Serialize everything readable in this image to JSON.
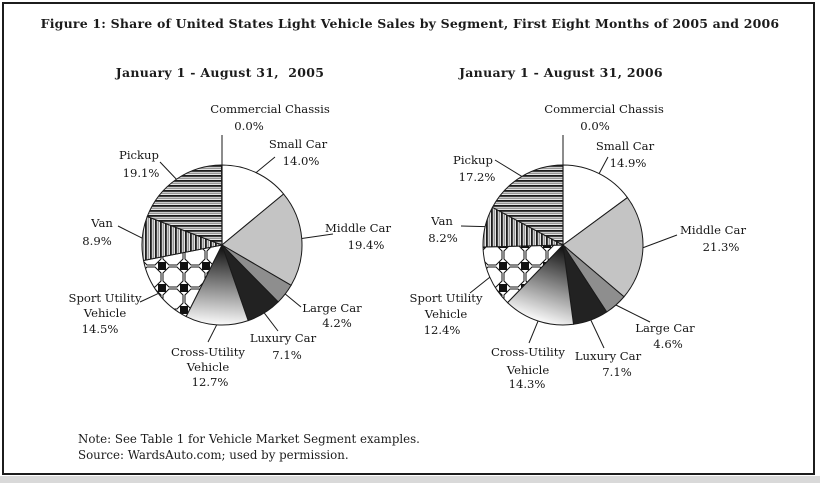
{
  "figure": {
    "title": "Figure 1: Share of United States Light Vehicle Sales by Segment, First Eight Months of 2005 and 2006"
  },
  "chart_data": [
    {
      "type": "pie",
      "title": "January 1 - August 31,  2005",
      "start_angle": "12 o'clock",
      "direction": "clockwise",
      "categories": [
        "Commercial Chassis",
        "Small Car",
        "Middle Car",
        "Large Car",
        "Luxury Car",
        "Cross-Utility Vehicle",
        "Sport Utility Vehicle",
        "Van",
        "Pickup"
      ],
      "values": [
        0.0,
        14.0,
        19.4,
        4.2,
        7.1,
        12.7,
        14.5,
        8.9,
        19.1
      ],
      "value_labels": [
        "0.0%",
        "14.0%",
        "19.4%",
        "4.2%",
        "7.1%",
        "12.7%",
        "14.5%",
        "8.9%",
        "19.1%"
      ],
      "label_lines": [
        [
          "Commercial Chassis"
        ],
        [
          "Small Car"
        ],
        [
          "Middle Car"
        ],
        [
          "Large Car"
        ],
        [
          "Luxury Car"
        ],
        [
          "Cross-Utility",
          "Vehicle"
        ],
        [
          "Sport Utility",
          "Vehicle"
        ],
        [
          "Van"
        ],
        [
          "Pickup"
        ]
      ],
      "patterns": [
        "none",
        "solid-white",
        "solid-light-gray",
        "solid-medium-gray",
        "solid-black",
        "gradient",
        "checker",
        "vertical-stripes",
        "horizontal-stripes"
      ]
    },
    {
      "type": "pie",
      "title": "January 1 - August 31, 2006",
      "start_angle": "12 o'clock",
      "direction": "clockwise",
      "categories": [
        "Commercial Chassis",
        "Small Car",
        "Middle Car",
        "Large Car",
        "Luxury Car",
        "Cross-Utility Vehicle",
        "Sport Utility Vehicle",
        "Van",
        "Pickup"
      ],
      "values": [
        0.0,
        14.9,
        21.3,
        4.6,
        7.1,
        14.3,
        12.4,
        8.2,
        17.2
      ],
      "value_labels": [
        "0.0%",
        "14.9%",
        "21.3%",
        "4.6%",
        "7.1%",
        "14.3%",
        "12.4%",
        "8.2%",
        "17.2%"
      ],
      "label_lines": [
        [
          "Commercial Chassis"
        ],
        [
          "Small Car"
        ],
        [
          "Middle Car"
        ],
        [
          "Large Car"
        ],
        [
          "Luxury Car"
        ],
        [
          "Cross-Utility",
          "Vehicle"
        ],
        [
          "Sport Utility",
          "Vehicle"
        ],
        [
          "Van"
        ],
        [
          "Pickup"
        ]
      ],
      "patterns": [
        "none",
        "solid-white",
        "solid-light-gray",
        "solid-medium-gray",
        "solid-black",
        "gradient",
        "checker",
        "vertical-stripes",
        "horizontal-stripes"
      ]
    }
  ],
  "colors": {
    "light_gray": "#c4c4c4",
    "medium_gray": "#8e8e8e",
    "near_black": "#222222",
    "stroke": "#1a1a1a",
    "page_edge_strip": "#d9d9d9"
  },
  "note": {
    "line1": "Note: See Table 1 for Vehicle Market Segment examples.",
    "line2": "Source: WardsAuto.com; used by permission."
  }
}
